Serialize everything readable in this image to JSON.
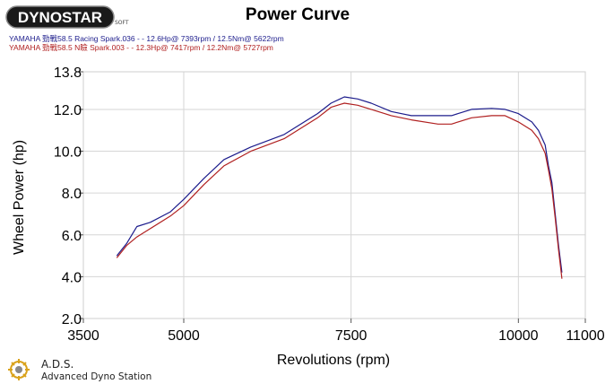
{
  "brand": {
    "logo_text": "DYNOSTAR",
    "logo_sub": "SOFT"
  },
  "legend": [
    {
      "text": "YAMAHA 勁戰58.5 Racing Spark.036 - - 12.6Hp@ 7393rpm / 12.5Nm@ 5622rpm",
      "color": "#1c1c8c"
    },
    {
      "text": "YAMAHA 勁戰58.5 N瞼 Spark.003 - - 12.3Hp@ 7417rpm / 12.2Nm@ 5727rpm",
      "color": "#b02020"
    }
  ],
  "footer": {
    "abbr": "A.D.S.",
    "name": "Advanced Dyno Station"
  },
  "chart_data": {
    "type": "line",
    "title": "Power Curve",
    "xlabel": "Revolutions (rpm)",
    "ylabel": "Wheel Power (hp)",
    "xlim": [
      3500,
      11000
    ],
    "ylim": [
      2.0,
      13.8
    ],
    "x_ticks": [
      3500,
      5000,
      7500,
      10000,
      11000
    ],
    "x_tick_labels": [
      "3500",
      "5000",
      "7500",
      "10000",
      "11000"
    ],
    "y_ticks": [
      2.0,
      4.0,
      6.0,
      8.0,
      10.0,
      12.0,
      13.8
    ],
    "y_tick_labels": [
      "2.0",
      "4.0",
      "6.0",
      "8.0",
      "10.0",
      "12.0",
      "13.8"
    ],
    "grid": true,
    "series": [
      {
        "color": "#1c1c8c",
        "x": [
          4000,
          4150,
          4300,
          4500,
          4800,
          5000,
          5300,
          5600,
          6000,
          6500,
          7000,
          7200,
          7400,
          7600,
          7800,
          8100,
          8400,
          8800,
          9000,
          9100,
          9300,
          9600,
          9800,
          10000,
          10200,
          10300,
          10400,
          10450,
          10500,
          10550,
          10600,
          10650
        ],
        "values": [
          5.0,
          5.6,
          6.4,
          6.6,
          7.1,
          7.7,
          8.7,
          9.6,
          10.2,
          10.8,
          11.8,
          12.3,
          12.6,
          12.5,
          12.3,
          11.9,
          11.7,
          11.7,
          11.7,
          11.8,
          12.0,
          12.05,
          12.0,
          11.8,
          11.4,
          11.0,
          10.3,
          9.3,
          8.5,
          7.0,
          5.5,
          4.2
        ]
      },
      {
        "color": "#b02020",
        "x": [
          4000,
          4150,
          4300,
          4500,
          4800,
          5000,
          5300,
          5600,
          6000,
          6500,
          7000,
          7200,
          7400,
          7600,
          7800,
          8100,
          8400,
          8800,
          9000,
          9100,
          9300,
          9600,
          9800,
          10000,
          10200,
          10300,
          10400,
          10450,
          10500,
          10550,
          10600,
          10650
        ],
        "values": [
          4.9,
          5.5,
          5.9,
          6.3,
          6.9,
          7.4,
          8.4,
          9.3,
          10.0,
          10.6,
          11.6,
          12.1,
          12.3,
          12.2,
          12.0,
          11.7,
          11.5,
          11.3,
          11.3,
          11.4,
          11.6,
          11.7,
          11.7,
          11.4,
          11.0,
          10.6,
          9.9,
          9.1,
          8.2,
          6.8,
          5.3,
          3.9
        ]
      }
    ]
  }
}
